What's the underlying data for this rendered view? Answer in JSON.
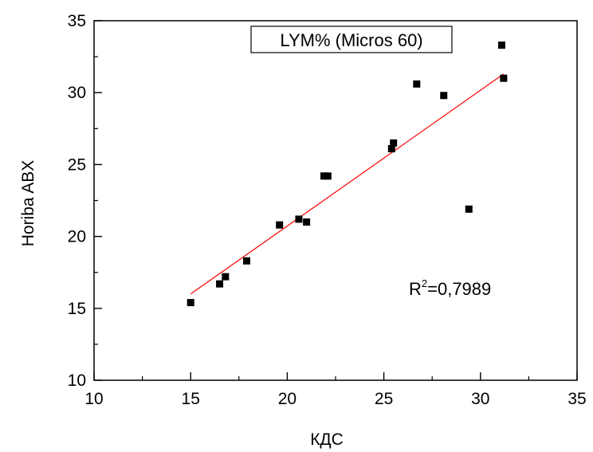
{
  "chart_data": {
    "type": "scatter",
    "xlabel": "КДС",
    "ylabel": "Horiba ABX",
    "xlim": [
      10,
      35
    ],
    "ylim": [
      10,
      35
    ],
    "xticks": [
      10,
      15,
      20,
      25,
      30,
      35
    ],
    "yticks": [
      10,
      15,
      20,
      25,
      30,
      35
    ],
    "xtick_labels": [
      "10",
      "15",
      "20",
      "25",
      "30",
      "35"
    ],
    "ytick_labels": [
      "10",
      "15",
      "20",
      "25",
      "30",
      "35"
    ],
    "minor_tick_step": 2.5,
    "grid": false,
    "legend_text": "LYM%  (Micros 60)",
    "legend_position": "top-center",
    "annotation": {
      "base": "R",
      "sup": "2",
      "tail": "=0,7989"
    },
    "series": [
      {
        "marker": "square",
        "color": "#000000",
        "points": [
          {
            "x": 15.0,
            "y": 15.4
          },
          {
            "x": 16.5,
            "y": 16.7
          },
          {
            "x": 16.8,
            "y": 17.2
          },
          {
            "x": 17.9,
            "y": 18.3
          },
          {
            "x": 19.6,
            "y": 20.8
          },
          {
            "x": 20.6,
            "y": 21.2
          },
          {
            "x": 21.0,
            "y": 21.0
          },
          {
            "x": 21.9,
            "y": 24.2
          },
          {
            "x": 22.1,
            "y": 24.2
          },
          {
            "x": 25.4,
            "y": 26.1
          },
          {
            "x": 25.5,
            "y": 26.5
          },
          {
            "x": 26.7,
            "y": 30.6
          },
          {
            "x": 28.1,
            "y": 29.8
          },
          {
            "x": 29.4,
            "y": 21.9
          },
          {
            "x": 31.1,
            "y": 33.3
          },
          {
            "x": 31.2,
            "y": 31.0
          }
        ]
      }
    ],
    "fit_line": {
      "color": "#ff0000",
      "x": [
        15.0,
        31.2
      ],
      "y": [
        16.0,
        31.3
      ]
    }
  }
}
